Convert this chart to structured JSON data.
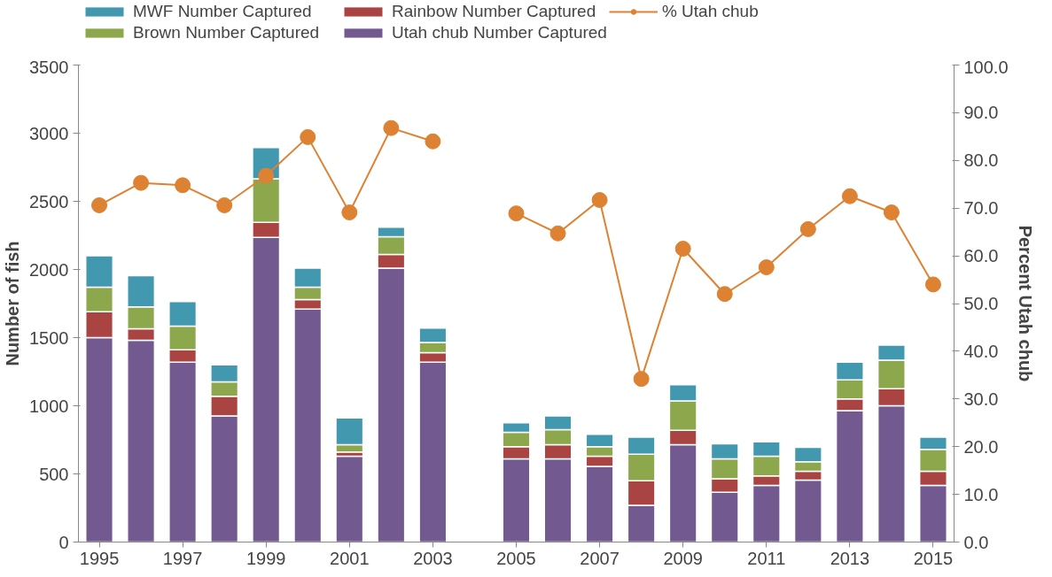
{
  "chart_data": {
    "type": "bar",
    "stacked": true,
    "ylabel": "Number of fish",
    "y2label": "Percent Utah chub",
    "x": [
      1995,
      1996,
      1997,
      1998,
      1999,
      2000,
      2001,
      2002,
      2003,
      2004,
      2005,
      2006,
      2007,
      2008,
      2009,
      2010,
      2011,
      2012,
      2013,
      2014,
      2015
    ],
    "xlim": [
      1994.5,
      2015.5
    ],
    "xticks": [
      1995,
      1997,
      1999,
      2001,
      2003,
      2005,
      2007,
      2009,
      2011,
      2013,
      2015
    ],
    "ylim": [
      0,
      3500
    ],
    "yticks": [
      0,
      500,
      1000,
      1500,
      2000,
      2500,
      3000,
      3500
    ],
    "y2lim": [
      0,
      100
    ],
    "y2ticks": [
      {
        "value": 0,
        "label": "0.0"
      },
      {
        "value": 10,
        "label": "10.0"
      },
      {
        "value": 20,
        "label": "20.0"
      },
      {
        "value": 30,
        "label": "30.0"
      },
      {
        "value": 40,
        "label": "40.0"
      },
      {
        "value": 50,
        "label": "50.0"
      },
      {
        "value": 60,
        "label": "60.0"
      },
      {
        "value": 70,
        "label": "70.0"
      },
      {
        "value": 80,
        "label": "80.0"
      },
      {
        "value": 90,
        "label": "90.0"
      },
      {
        "value": 100,
        "label": "100.0"
      }
    ],
    "series": [
      {
        "name": "Utah chub Number Captured",
        "color": "#725a91",
        "values": [
          1500,
          1480,
          1320,
          925,
          2235,
          1710,
          630,
          2010,
          1320,
          null,
          610,
          610,
          555,
          270,
          715,
          365,
          415,
          455,
          965,
          1000,
          415
        ]
      },
      {
        "name": "Rainbow Number Captured",
        "color": "#a94442",
        "values": [
          190,
          85,
          90,
          145,
          110,
          70,
          30,
          100,
          70,
          null,
          90,
          105,
          75,
          180,
          105,
          100,
          70,
          65,
          85,
          125,
          105
        ]
      },
      {
        "name": "Brown Number Captured",
        "color": "#8ca74c",
        "values": [
          180,
          160,
          175,
          105,
          320,
          90,
          55,
          130,
          75,
          null,
          105,
          110,
          70,
          195,
          215,
          145,
          145,
          70,
          140,
          210,
          160
        ]
      },
      {
        "name": "MWF Number Captured",
        "color": "#4198af",
        "values": [
          230,
          230,
          180,
          125,
          230,
          140,
          195,
          70,
          105,
          null,
          70,
          100,
          90,
          125,
          120,
          110,
          105,
          105,
          130,
          110,
          90
        ]
      },
      {
        "name": "% Utah chub",
        "type": "line",
        "axis": "y2",
        "color": "#dd8233",
        "marker": "circle",
        "values": [
          70.6,
          75.3,
          74.8,
          70.6,
          76.8,
          84.9,
          69.1,
          86.8,
          84.0,
          null,
          68.9,
          64.7,
          71.7,
          34.2,
          61.5,
          52.0,
          57.6,
          65.6,
          72.5,
          69.1,
          54.0
        ]
      }
    ],
    "grid": false,
    "legend": "top"
  }
}
